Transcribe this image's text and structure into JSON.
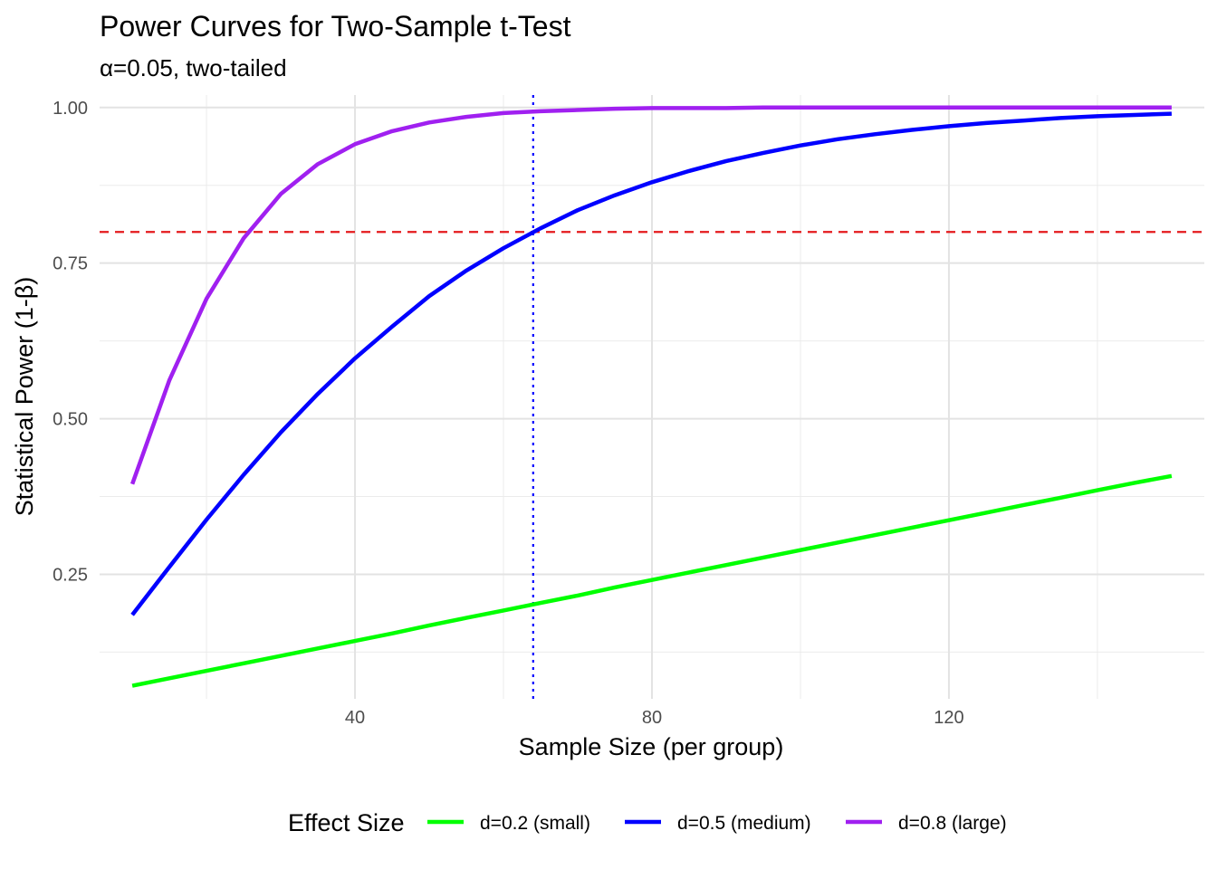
{
  "chart_data": {
    "type": "line",
    "title": "Power Curves for Two-Sample t-Test",
    "subtitle": "α=0.05, two-tailed",
    "xlabel": "Sample Size (per group)",
    "ylabel": "Statistical Power (1-β)",
    "xlim": [
      10,
      150
    ],
    "ylim": [
      0.05,
      1.02
    ],
    "x_ticks": [
      40,
      80,
      120
    ],
    "x_tick_labels": [
      "40",
      "80",
      "120"
    ],
    "y_ticks": [
      0.25,
      0.5,
      0.75,
      1.0
    ],
    "y_tick_labels": [
      "0.25",
      "0.50",
      "0.75",
      "1.00"
    ],
    "grid": true,
    "legend": {
      "title": "Effect Size",
      "position": "bottom"
    },
    "x": [
      10,
      15,
      20,
      25,
      30,
      35,
      40,
      45,
      50,
      55,
      60,
      65,
      70,
      75,
      80,
      85,
      90,
      95,
      100,
      105,
      110,
      115,
      120,
      125,
      130,
      135,
      140,
      145,
      150
    ],
    "series": [
      {
        "name": "d=0.2 (small)",
        "color": "#00ff00",
        "values": [
          0.071,
          0.083,
          0.095,
          0.107,
          0.119,
          0.131,
          0.143,
          0.155,
          0.168,
          0.18,
          0.192,
          0.204,
          0.216,
          0.229,
          0.241,
          0.253,
          0.265,
          0.277,
          0.289,
          0.301,
          0.313,
          0.325,
          0.337,
          0.349,
          0.361,
          0.373,
          0.385,
          0.397,
          0.408
        ]
      },
      {
        "name": "d=0.5 (medium)",
        "color": "#0000ff",
        "values": [
          0.185,
          0.262,
          0.338,
          0.41,
          0.478,
          0.54,
          0.597,
          0.648,
          0.697,
          0.738,
          0.774,
          0.806,
          0.835,
          0.859,
          0.88,
          0.898,
          0.914,
          0.927,
          0.939,
          0.949,
          0.957,
          0.964,
          0.97,
          0.975,
          0.979,
          0.983,
          0.986,
          0.988,
          0.99
        ]
      },
      {
        "name": "d=0.8 (large)",
        "color": "#a020f0",
        "values": [
          0.395,
          0.562,
          0.693,
          0.79,
          0.861,
          0.909,
          0.941,
          0.962,
          0.976,
          0.985,
          0.991,
          0.994,
          0.996,
          0.998,
          0.999,
          0.999,
          0.999,
          1.0,
          1.0,
          1.0,
          1.0,
          1.0,
          1.0,
          1.0,
          1.0,
          1.0,
          1.0,
          1.0,
          1.0
        ]
      }
    ],
    "reference_lines": [
      {
        "orientation": "horizontal",
        "value": 0.8,
        "color": "#e41a1c",
        "style": "dashed"
      },
      {
        "orientation": "vertical",
        "value": 64,
        "color": "#0000ff",
        "style": "dotted"
      }
    ]
  }
}
